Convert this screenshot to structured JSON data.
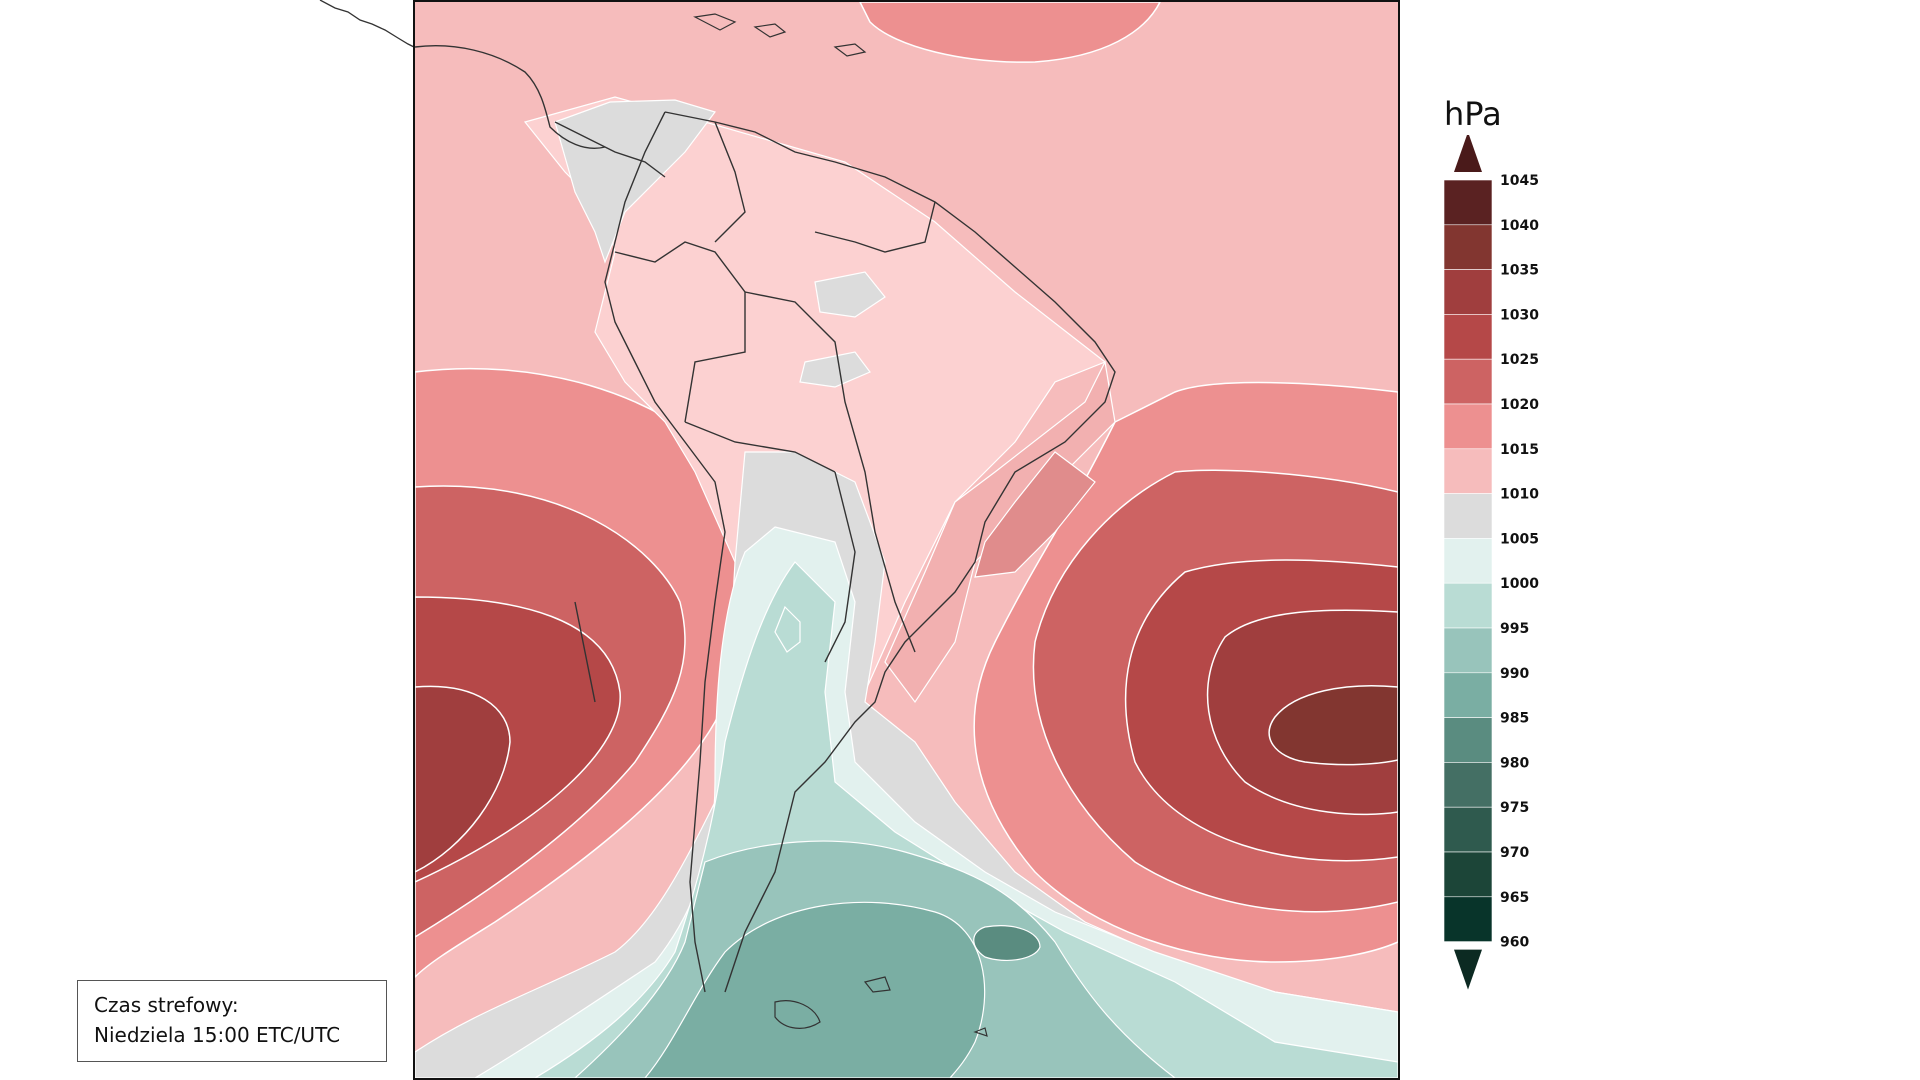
{
  "legend": {
    "unit": "hPa",
    "ticks": [
      "1045",
      "1040",
      "1035",
      "1030",
      "1025",
      "1020",
      "1015",
      "1010",
      "1005",
      "1000",
      "995",
      "990",
      "985",
      "980",
      "975",
      "970",
      "965",
      "960"
    ],
    "bands": [
      "#5a2222",
      "#823630",
      "#a03e3e",
      "#b54848",
      "#cd6363",
      "#ed9090",
      "#f6bcbc",
      "#dcdcdc",
      "#e2f1ee",
      "#b9dcd4",
      "#98c4bb",
      "#7aaea3",
      "#5a8c80",
      "#446f64",
      "#2f5a4e",
      "#1c4538",
      "#08342a"
    ],
    "arrow_colors": {
      "top": "#4a1a1a",
      "bottom": "#0c2a22"
    }
  },
  "timezone": {
    "title": "Czas strefowy:",
    "value": "Niedziela 15:00 ETC/UTC"
  },
  "map": {
    "high_pressure_cells": [
      "west-pacific-high",
      "south-atlantic-high"
    ],
    "low_pressure_cells": [
      "drake-passage-low"
    ]
  }
}
